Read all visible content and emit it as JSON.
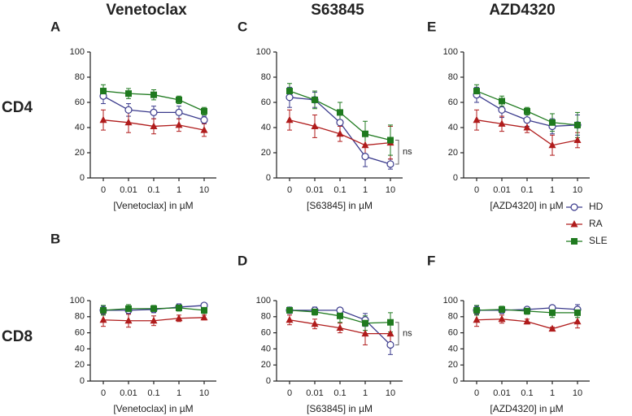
{
  "column_titles": [
    "Venetoclax",
    "S63845",
    "AZD4320"
  ],
  "row_labels": [
    "CD4",
    "CD8"
  ],
  "chart_data": [
    {
      "type": "line",
      "panel": "A",
      "categories": [
        "0",
        "0.01",
        "0.1",
        "1",
        "10"
      ],
      "xlabel": "[Venetoclax] in µM",
      "ylim": [
        0,
        100
      ],
      "yticks": [
        0,
        20,
        40,
        60,
        80,
        100
      ],
      "series": [
        {
          "name": "HD",
          "color": "#3a3a8c",
          "marker": "open-circle",
          "values": [
            65,
            54,
            52,
            52,
            46
          ],
          "errors": [
            6,
            5,
            5,
            5,
            3
          ]
        },
        {
          "name": "RA",
          "color": "#b01c1c",
          "marker": "triangle",
          "values": [
            46,
            44,
            41,
            42,
            38
          ],
          "errors": [
            8,
            8,
            6,
            5,
            5
          ]
        },
        {
          "name": "SLE",
          "color": "#1f7a1f",
          "marker": "square",
          "values": [
            69,
            67,
            66,
            62,
            53
          ],
          "errors": [
            5,
            4,
            4,
            3,
            3
          ]
        }
      ]
    },
    {
      "type": "line",
      "panel": "B",
      "categories": [
        "0",
        "0.01",
        "0.1",
        "1",
        "10"
      ],
      "xlabel": "[Venetoclax] in µM",
      "ylim": [
        0,
        100
      ],
      "yticks": [
        0,
        20,
        40,
        60,
        80,
        100
      ],
      "series": [
        {
          "name": "HD",
          "color": "#3a3a8c",
          "marker": "open-circle",
          "values": [
            88,
            88,
            89,
            92,
            94
          ],
          "errors": [
            5,
            4,
            4,
            4,
            2
          ]
        },
        {
          "name": "RA",
          "color": "#b01c1c",
          "marker": "triangle",
          "values": [
            76,
            75,
            75,
            78,
            79
          ],
          "errors": [
            8,
            8,
            6,
            4,
            3
          ]
        },
        {
          "name": "SLE",
          "color": "#1f7a1f",
          "marker": "square",
          "values": [
            88,
            90,
            90,
            91,
            88
          ],
          "errors": [
            6,
            5,
            4,
            4,
            4
          ]
        }
      ]
    },
    {
      "type": "line",
      "panel": "C",
      "categories": [
        "0",
        "0.01",
        "0.1",
        "1",
        "10"
      ],
      "xlabel": "[S63845] in µM",
      "ylim": [
        0,
        100
      ],
      "yticks": [
        0,
        20,
        40,
        60,
        80,
        100
      ],
      "annotation": "ns",
      "series": [
        {
          "name": "HD",
          "color": "#3a3a8c",
          "marker": "open-circle",
          "values": [
            64,
            62,
            44,
            17,
            11
          ],
          "errors": [
            8,
            6,
            10,
            8,
            4
          ]
        },
        {
          "name": "RA",
          "color": "#b01c1c",
          "marker": "triangle",
          "values": [
            46,
            41,
            35,
            26,
            28
          ],
          "errors": [
            8,
            9,
            6,
            10,
            13
          ]
        },
        {
          "name": "SLE",
          "color": "#1f7a1f",
          "marker": "square",
          "values": [
            69,
            62,
            52,
            35,
            30
          ],
          "errors": [
            6,
            7,
            8,
            10,
            12
          ]
        }
      ]
    },
    {
      "type": "line",
      "panel": "D",
      "categories": [
        "0",
        "0.01",
        "0.1",
        "1",
        "10"
      ],
      "xlabel": "[S63845] in µM",
      "ylim": [
        0,
        100
      ],
      "yticks": [
        0,
        20,
        40,
        60,
        80,
        100
      ],
      "annotation": "ns",
      "series": [
        {
          "name": "HD",
          "color": "#3a3a8c",
          "marker": "open-circle",
          "values": [
            88,
            88,
            88,
            76,
            45
          ],
          "errors": [
            4,
            4,
            3,
            8,
            12
          ]
        },
        {
          "name": "RA",
          "color": "#b01c1c",
          "marker": "triangle",
          "values": [
            76,
            71,
            66,
            59,
            59
          ],
          "errors": [
            6,
            6,
            6,
            14,
            12
          ]
        },
        {
          "name": "SLE",
          "color": "#1f7a1f",
          "marker": "square",
          "values": [
            88,
            86,
            81,
            72,
            73
          ],
          "errors": [
            3,
            4,
            8,
            9,
            12
          ]
        }
      ]
    },
    {
      "type": "line",
      "panel": "E",
      "categories": [
        "0",
        "0.01",
        "0.1",
        "1",
        "10"
      ],
      "xlabel": "[AZD4320] in µM",
      "ylim": [
        0,
        100
      ],
      "yticks": [
        0,
        20,
        40,
        60,
        80,
        100
      ],
      "series": [
        {
          "name": "HD",
          "color": "#3a3a8c",
          "marker": "open-circle",
          "values": [
            66,
            54,
            46,
            41,
            42
          ],
          "errors": [
            6,
            6,
            5,
            6,
            8
          ]
        },
        {
          "name": "RA",
          "color": "#b01c1c",
          "marker": "triangle",
          "values": [
            46,
            43,
            40,
            26,
            30
          ],
          "errors": [
            8,
            6,
            4,
            8,
            6
          ]
        },
        {
          "name": "SLE",
          "color": "#1f7a1f",
          "marker": "square",
          "values": [
            69,
            61,
            53,
            44,
            42
          ],
          "errors": [
            5,
            4,
            3,
            7,
            10
          ]
        }
      ]
    },
    {
      "type": "line",
      "panel": "F",
      "categories": [
        "0",
        "0.01",
        "0.1",
        "1",
        "10"
      ],
      "xlabel": "[AZD4320] in µM",
      "ylim": [
        0,
        100
      ],
      "yticks": [
        0,
        20,
        40,
        60,
        80,
        100
      ],
      "series": [
        {
          "name": "HD",
          "color": "#3a3a8c",
          "marker": "open-circle",
          "values": [
            88,
            88,
            89,
            91,
            89
          ],
          "errors": [
            5,
            4,
            3,
            3,
            6
          ]
        },
        {
          "name": "RA",
          "color": "#b01c1c",
          "marker": "triangle",
          "values": [
            76,
            77,
            74,
            65,
            74
          ],
          "errors": [
            8,
            5,
            3,
            2,
            8
          ]
        },
        {
          "name": "SLE",
          "color": "#1f7a1f",
          "marker": "square",
          "values": [
            88,
            89,
            87,
            85,
            85
          ],
          "errors": [
            6,
            4,
            4,
            6,
            6
          ]
        }
      ]
    }
  ]
}
